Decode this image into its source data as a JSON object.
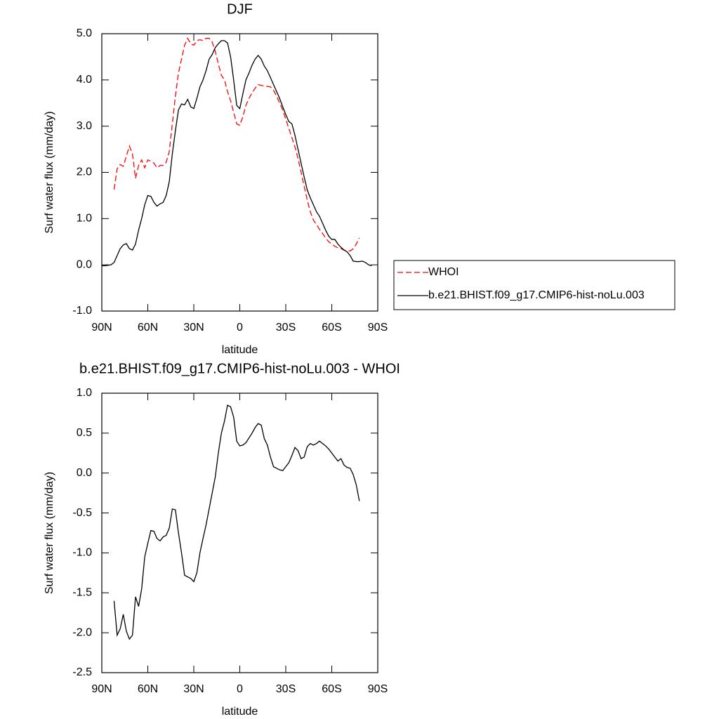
{
  "chart_data": [
    {
      "type": "line",
      "title": "DJF",
      "xlabel": "latitude",
      "ylabel": "Surf water flux (mm/day)",
      "x": [
        90,
        88,
        86,
        84,
        82,
        80,
        78,
        76,
        74,
        72,
        70,
        68,
        66,
        64,
        62,
        60,
        58,
        56,
        54,
        52,
        50,
        48,
        46,
        44,
        42,
        40,
        38,
        36,
        34,
        32,
        30,
        28,
        26,
        24,
        22,
        20,
        18,
        16,
        14,
        12,
        10,
        8,
        6,
        4,
        2,
        0,
        -2,
        -4,
        -6,
        -8,
        -10,
        -12,
        -14,
        -16,
        -18,
        -20,
        -22,
        -24,
        -26,
        -28,
        -30,
        -32,
        -34,
        -36,
        -38,
        -40,
        -42,
        -44,
        -46,
        -48,
        -50,
        -52,
        -54,
        -56,
        -58,
        -60,
        -62,
        -64,
        -66,
        -68,
        -70,
        -72,
        -74,
        -76,
        -78,
        -80,
        -82,
        -84,
        -86
      ],
      "series": [
        {
          "name": "WHOI",
          "color": "#ff0000",
          "style": "dashed",
          "values": [
            null,
            null,
            null,
            null,
            1.63,
            2.08,
            2.17,
            2.13,
            2.35,
            2.57,
            2.4,
            1.87,
            2.15,
            2.27,
            2.1,
            2.27,
            2.24,
            2.2,
            2.1,
            2.15,
            2.15,
            2.22,
            2.45,
            3.05,
            3.65,
            4.15,
            4.45,
            4.75,
            4.9,
            4.78,
            4.75,
            4.85,
            4.87,
            4.85,
            4.9,
            4.9,
            4.82,
            4.62,
            4.35,
            4.1,
            4.0,
            3.75,
            3.55,
            3.3,
            3.05,
            3.02,
            3.2,
            3.45,
            3.6,
            3.72,
            3.82,
            3.9,
            3.88,
            3.87,
            3.86,
            3.85,
            3.78,
            3.65,
            3.5,
            3.35,
            3.15,
            2.95,
            2.75,
            2.55,
            2.3,
            2.0,
            1.7,
            1.4,
            1.15,
            0.97,
            0.87,
            0.77,
            0.68,
            0.58,
            0.5,
            0.45,
            0.4,
            0.37,
            0.35,
            0.32,
            0.3,
            0.3,
            0.35,
            0.45,
            0.58,
            null,
            null,
            null,
            null
          ]
        },
        {
          "name": "b.e21.BHIST.f09_g17.CMIP6-hist-noLu.003",
          "color": "#000000",
          "style": "solid",
          "values": [
            -0.02,
            -0.02,
            -0.01,
            0.0,
            0.05,
            0.2,
            0.35,
            0.43,
            0.46,
            0.35,
            0.32,
            0.45,
            0.75,
            1.0,
            1.3,
            1.5,
            1.48,
            1.35,
            1.27,
            1.32,
            1.35,
            1.5,
            1.8,
            2.4,
            2.9,
            3.35,
            3.48,
            3.46,
            3.58,
            3.42,
            3.38,
            3.6,
            3.85,
            4.0,
            4.2,
            4.45,
            4.55,
            4.7,
            4.78,
            4.85,
            4.85,
            4.8,
            4.5,
            4.0,
            3.45,
            3.38,
            3.7,
            4.0,
            4.15,
            4.32,
            4.45,
            4.53,
            4.45,
            4.3,
            4.2,
            4.05,
            3.9,
            3.75,
            3.6,
            3.42,
            3.25,
            3.1,
            3.05,
            2.8,
            2.5,
            2.2,
            1.9,
            1.62,
            1.45,
            1.3,
            1.15,
            1.05,
            0.9,
            0.75,
            0.62,
            0.55,
            0.55,
            0.45,
            0.38,
            0.32,
            0.28,
            0.2,
            0.08,
            0.07,
            0.07,
            0.08,
            0.05,
            0.0,
            -0.02
          ]
        }
      ],
      "xlim": [
        90,
        -90
      ],
      "xticks": [
        {
          "value": 90,
          "label": "90N"
        },
        {
          "value": 60,
          "label": "60N"
        },
        {
          "value": 30,
          "label": "30N"
        },
        0,
        {
          "value": -30,
          "label": "30S"
        },
        {
          "value": -60,
          "label": "60S"
        },
        {
          "value": -90,
          "label": "90S"
        }
      ],
      "ylim": [
        -1,
        5
      ],
      "yticks": [
        {
          "value": -1,
          "label": "-1.0"
        },
        {
          "value": 0,
          "label": "0.0"
        },
        {
          "value": 1,
          "label": "1.0"
        },
        {
          "value": 2,
          "label": "2.0"
        },
        {
          "value": 3,
          "label": "3.0"
        },
        {
          "value": 4,
          "label": "4.0"
        },
        {
          "value": 5,
          "label": "5.0"
        }
      ],
      "legend": "right"
    },
    {
      "type": "line",
      "title": "b.e21.BHIST.f09_g17.CMIP6-hist-noLu.003 - WHOI",
      "xlabel": "latitude",
      "ylabel": "Surf water flux (mm/day)",
      "x": [
        82,
        80,
        78,
        76,
        74,
        72,
        70,
        68,
        66,
        64,
        62,
        60,
        58,
        56,
        54,
        52,
        50,
        48,
        46,
        44,
        42,
        40,
        38,
        36,
        34,
        32,
        30,
        28,
        26,
        24,
        22,
        20,
        18,
        16,
        14,
        12,
        10,
        8,
        6,
        4,
        2,
        0,
        -2,
        -4,
        -6,
        -8,
        -10,
        -12,
        -14,
        -16,
        -18,
        -20,
        -22,
        -24,
        -26,
        -28,
        -30,
        -32,
        -34,
        -36,
        -38,
        -40,
        -42,
        -44,
        -46,
        -48,
        -50,
        -52,
        -54,
        -56,
        -58,
        -60,
        -62,
        -64,
        -66,
        -68,
        -70,
        -72,
        -74,
        -76,
        -78
      ],
      "values": [
        -1.6,
        -2.03,
        -1.95,
        -1.77,
        -1.98,
        -2.08,
        -2.03,
        -1.55,
        -1.67,
        -1.45,
        -1.05,
        -0.88,
        -0.72,
        -0.73,
        -0.82,
        -0.85,
        -0.8,
        -0.78,
        -0.69,
        -0.45,
        -0.46,
        -0.75,
        -1.0,
        -1.28,
        -1.3,
        -1.32,
        -1.36,
        -1.25,
        -1.0,
        -0.82,
        -0.65,
        -0.45,
        -0.25,
        -0.05,
        0.25,
        0.5,
        0.65,
        0.85,
        0.83,
        0.7,
        0.4,
        0.34,
        0.35,
        0.38,
        0.44,
        0.5,
        0.57,
        0.62,
        0.6,
        0.43,
        0.35,
        0.2,
        0.08,
        0.06,
        0.04,
        0.03,
        0.08,
        0.13,
        0.22,
        0.32,
        0.28,
        0.18,
        0.2,
        0.33,
        0.37,
        0.35,
        0.37,
        0.4,
        0.37,
        0.34,
        0.3,
        0.25,
        0.2,
        0.15,
        0.18,
        0.1,
        0.07,
        0.06,
        -0.02,
        -0.15,
        -0.35
      ],
      "color": "#000000",
      "xlim": [
        90,
        -90
      ],
      "xticks": [
        {
          "value": 90,
          "label": "90N"
        },
        {
          "value": 60,
          "label": "60N"
        },
        {
          "value": 30,
          "label": "30N"
        },
        0,
        {
          "value": -30,
          "label": "30S"
        },
        {
          "value": -60,
          "label": "60S"
        },
        {
          "value": -90,
          "label": "90S"
        }
      ],
      "ylim": [
        -2.5,
        1
      ],
      "yticks": [
        {
          "value": -2.5,
          "label": "-2.5"
        },
        {
          "value": -2,
          "label": "-2.0"
        },
        -1.5,
        {
          "value": -1,
          "label": "-1.0"
        },
        -0.5,
        {
          "value": 0,
          "label": "0.0"
        },
        0.5,
        {
          "value": 1,
          "label": "1.0"
        }
      ]
    }
  ]
}
